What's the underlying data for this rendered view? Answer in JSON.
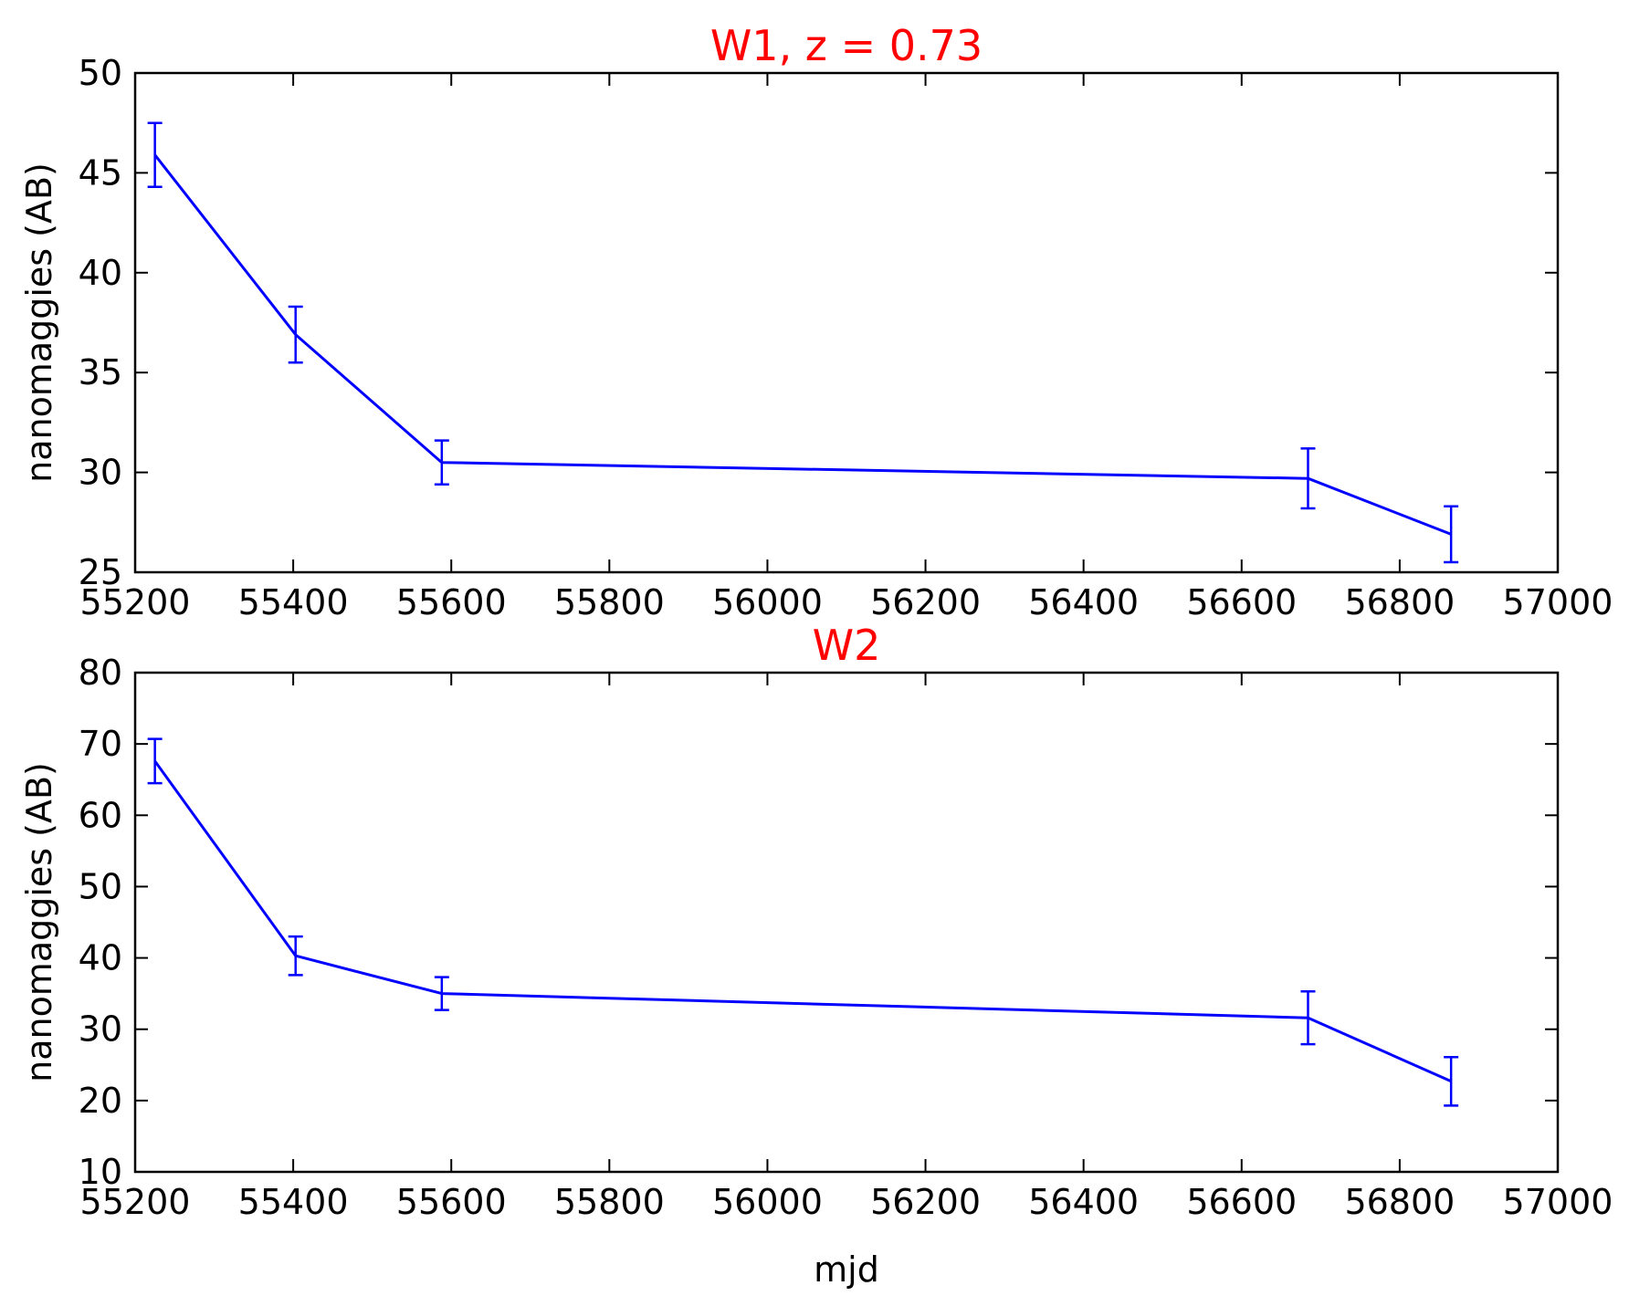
{
  "chart_data": [
    {
      "type": "line",
      "title": "W1, z = 0.73",
      "xlabel": "",
      "ylabel": "nanomaggies (AB)",
      "xlim": [
        55200,
        57000
      ],
      "ylim": [
        25,
        50
      ],
      "xticks": [
        "55200",
        "55400",
        "55600",
        "55800",
        "56000",
        "56200",
        "56400",
        "56600",
        "56800",
        "57000"
      ],
      "yticks": [
        "25",
        "30",
        "35",
        "40",
        "45",
        "50"
      ],
      "grid": false,
      "series": [
        {
          "x": [
            55225,
            55403,
            55588,
            56684,
            56865
          ],
          "y": [
            45.9,
            36.9,
            30.5,
            29.7,
            26.9
          ],
          "err": [
            1.6,
            1.4,
            1.1,
            1.5,
            1.4
          ]
        }
      ]
    },
    {
      "type": "line",
      "title": "W2",
      "xlabel": "mjd",
      "ylabel": "nanomaggies (AB)",
      "xlim": [
        55200,
        57000
      ],
      "ylim": [
        10,
        80
      ],
      "xticks": [
        "55200",
        "55400",
        "55600",
        "55800",
        "56000",
        "56200",
        "56400",
        "56600",
        "56800",
        "57000"
      ],
      "yticks": [
        "10",
        "20",
        "30",
        "40",
        "50",
        "60",
        "70",
        "80"
      ],
      "grid": false,
      "series": [
        {
          "x": [
            55225,
            55403,
            55588,
            56684,
            56865
          ],
          "y": [
            67.6,
            40.3,
            35.0,
            31.6,
            22.7
          ],
          "err": [
            3.1,
            2.7,
            2.3,
            3.7,
            3.4
          ]
        }
      ]
    }
  ],
  "colors": {
    "series": "#0000ff",
    "title": "#ff0000",
    "axes": "#000000"
  }
}
